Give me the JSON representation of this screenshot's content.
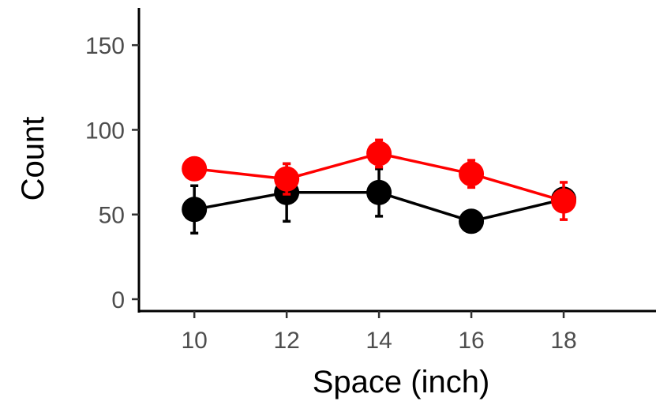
{
  "chart_data": {
    "type": "line",
    "title": "",
    "xlabel": "Space (inch)",
    "ylabel": "Count",
    "x": [
      10,
      12,
      14,
      16,
      18
    ],
    "xlim": [
      8.8,
      20.0
    ],
    "ylim": [
      -7,
      172
    ],
    "xticks": [
      10,
      12,
      14,
      16,
      18
    ],
    "yticks": [
      0,
      50,
      100,
      150
    ],
    "grid": false,
    "legend": "none",
    "series": [
      {
        "color": "#000000",
        "y": [
          53,
          63,
          63,
          46,
          59
        ],
        "err": [
          14,
          17,
          14,
          0,
          4
        ]
      },
      {
        "color": "#ff0000",
        "y": [
          77,
          71,
          86,
          74,
          58
        ],
        "err": [
          5,
          9,
          8,
          8,
          11
        ]
      }
    ]
  }
}
